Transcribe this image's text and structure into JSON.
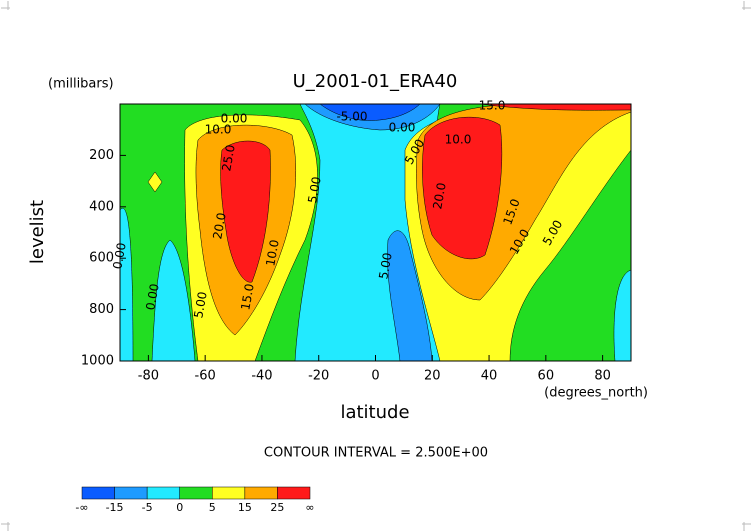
{
  "chart_data": {
    "type": "contour",
    "title": "U_2001-01_ERA40",
    "y_units": "(millibars)",
    "y_label": "levelist",
    "x_label": "latitude",
    "x_units": "(degrees_north)",
    "subtitle": "CONTOUR INTERVAL = 2.500E+00",
    "xlim": [
      -90,
      90
    ],
    "xticks": [
      -80,
      -60,
      -40,
      -20,
      0,
      20,
      40,
      60,
      80
    ],
    "ylim": [
      1000,
      0
    ],
    "yticks": [
      200,
      400,
      600,
      800,
      1000
    ],
    "contour_labels": [
      "10.0",
      "0.00",
      "25.0",
      "20.0",
      "10.0",
      "15.0",
      "5.00",
      "0.00",
      "0.00",
      "5.00",
      "-5.00",
      "0.00",
      "5.00",
      "10.0",
      "15.0",
      "20.0",
      "15.0",
      "10.0",
      "5.00",
      "5.00"
    ],
    "colorbar": {
      "labels": [
        "-∞",
        -15,
        -5,
        0,
        5,
        15,
        25,
        "∞"
      ],
      "colors": [
        "#0a5cff",
        "#1e9bff",
        "#22eaff",
        "#22dd22",
        "#ffff22",
        "#ffaa00",
        "#ff1a1a"
      ]
    }
  }
}
